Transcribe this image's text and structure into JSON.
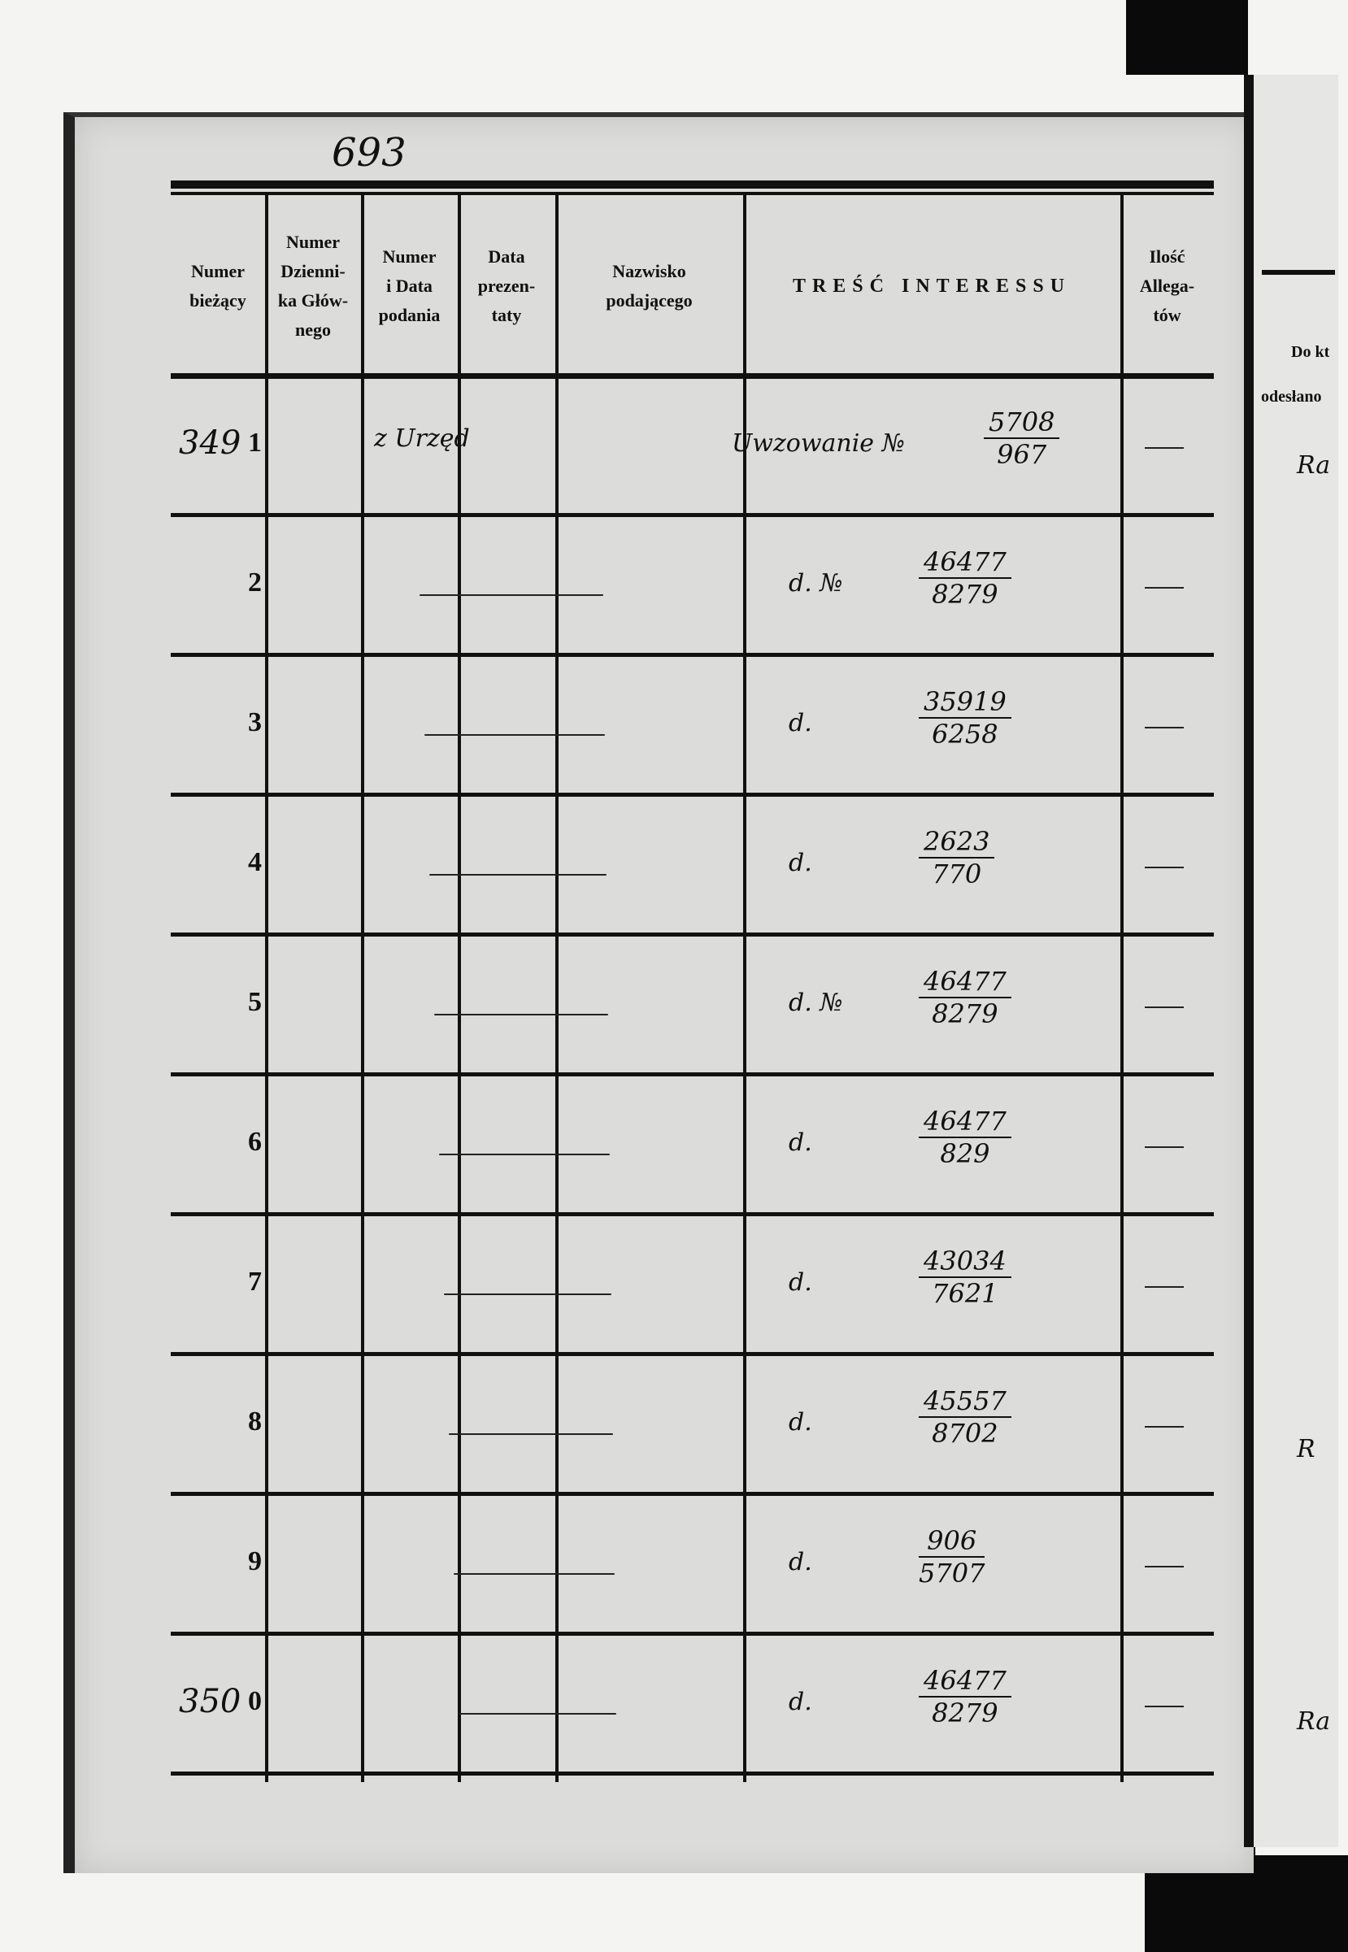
{
  "page_number": "693",
  "table": {
    "headers": [
      "Numer bieżący",
      "Numer Dziennika Głównego",
      "Numer i Data podania",
      "Data prezentaty",
      "Nazwisko podającego",
      "TREŚĆ INTERESSU",
      "Ilość Allegatów"
    ],
    "header_lines": [
      [
        "Numer",
        "bieżący"
      ],
      [
        "Numer",
        "Dzienni-",
        "ka Głów-",
        "nego"
      ],
      [
        "Numer",
        "i Data",
        "podania"
      ],
      [
        "Data",
        "prezen-",
        "taty"
      ],
      [
        "Nazwisko",
        "podającego"
      ],
      [
        "TREŚĆ INTERESSU"
      ],
      [
        "Ilość",
        "Allega-",
        "tów"
      ]
    ],
    "rows": [
      {
        "prefix": "349",
        "ordinal": "1",
        "podania": "z Urzęd",
        "tresc": "Uwzowanie №",
        "num": "5708",
        "den": "967",
        "alleg": "—"
      },
      {
        "prefix": "",
        "ordinal": "2",
        "podania": "",
        "tresc": "d. №",
        "num": "46477",
        "den": "8279",
        "alleg": "—"
      },
      {
        "prefix": "",
        "ordinal": "3",
        "podania": "",
        "tresc": "d.",
        "num": "35919",
        "den": "6258",
        "alleg": "—"
      },
      {
        "prefix": "",
        "ordinal": "4",
        "podania": "",
        "tresc": "d.",
        "num": "2623",
        "den": "770",
        "alleg": "—"
      },
      {
        "prefix": "",
        "ordinal": "5",
        "podania": "",
        "tresc": "d. №",
        "num": "46477",
        "den": "8279",
        "alleg": "—"
      },
      {
        "prefix": "",
        "ordinal": "6",
        "podania": "",
        "tresc": "d.",
        "num": "46477",
        "den": "829",
        "alleg": "—"
      },
      {
        "prefix": "",
        "ordinal": "7",
        "podania": "",
        "tresc": "d.",
        "num": "43034",
        "den": "7621",
        "alleg": "—"
      },
      {
        "prefix": "",
        "ordinal": "8",
        "podania": "",
        "tresc": "d.",
        "num": "45557",
        "den": "8702",
        "alleg": "—"
      },
      {
        "prefix": "",
        "ordinal": "9",
        "podania": "",
        "tresc": "d.",
        "num": "906",
        "den": "5707",
        "alleg": "—"
      },
      {
        "prefix": "350",
        "ordinal": "0",
        "podania": "",
        "tresc": "d.",
        "num": "46477",
        "den": "8279",
        "alleg": "—"
      }
    ]
  },
  "right_page": {
    "header_line1": "Do kt",
    "header_line2": "odesłano",
    "entries": [
      "Ra",
      "R",
      "Ra"
    ]
  }
}
